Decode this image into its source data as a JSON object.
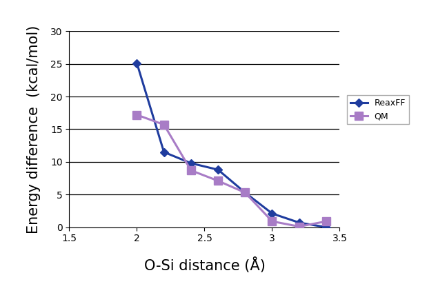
{
  "chart_data": {
    "type": "line",
    "x_label": "O-Si distance (Å)",
    "y_label": "Energy difference  (kcal/mol)",
    "x": [
      2.0,
      2.2,
      2.4,
      2.6,
      2.8,
      3.0,
      3.2,
      3.4
    ],
    "series": [
      {
        "name": "ReaxFF",
        "color": "#1f3c9e",
        "marker": "diamond",
        "line_style": "solid",
        "values": [
          25.1,
          11.5,
          9.8,
          8.8,
          5.3,
          2.1,
          0.7,
          0.0
        ]
      },
      {
        "name": "QM",
        "color": "#a87cc6",
        "marker": "square",
        "line_style": "solid",
        "values": [
          17.2,
          15.7,
          8.7,
          7.1,
          5.3,
          0.9,
          0.1,
          0.9
        ]
      }
    ],
    "xlim": [
      1.5,
      3.5
    ],
    "xticks": [
      1.5,
      2,
      2.5,
      3,
      3.5
    ],
    "ylim": [
      0,
      30
    ],
    "yticks": [
      0,
      5,
      10,
      15,
      20,
      25,
      30
    ],
    "grid": true,
    "legend": "right"
  }
}
